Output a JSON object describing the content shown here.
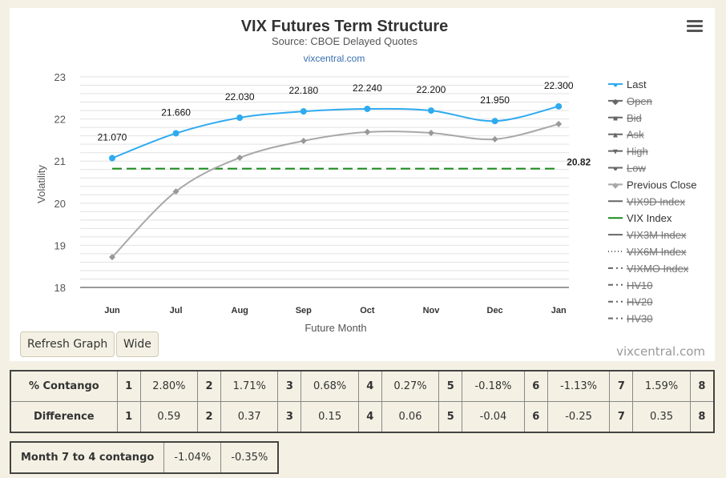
{
  "chart_data": {
    "type": "line",
    "title": "VIX Futures Term Structure",
    "subtitle": "Source: CBOE Delayed Quotes",
    "link": "vixcentral.com",
    "xlabel": "Future Month",
    "ylabel": "Volatility",
    "categories": [
      "Jun",
      "Jul",
      "Aug",
      "Sep",
      "Oct",
      "Nov",
      "Dec",
      "Jan"
    ],
    "ylim": [
      18,
      23
    ],
    "yticks": [
      "18",
      "19",
      "20",
      "21",
      "22",
      "23"
    ],
    "series": [
      {
        "name": "Last",
        "color": "#2eaaf0",
        "values": [
          21.07,
          21.66,
          22.03,
          22.18,
          22.24,
          22.2,
          21.95,
          22.3
        ],
        "labels": [
          "21.070",
          "21.660",
          "22.030",
          "22.180",
          "22.240",
          "22.200",
          "21.950",
          "22.300"
        ]
      },
      {
        "name": "Previous Close",
        "color": "#a8a8a8",
        "values": [
          18.72,
          20.28,
          21.08,
          21.48,
          21.69,
          21.67,
          21.52,
          21.88
        ]
      },
      {
        "name": "VIX Index",
        "color": "#1a8a1a",
        "value": 20.82,
        "label": "20.82"
      }
    ],
    "legend": [
      {
        "label": "Last",
        "hidden": false,
        "color": "#2eaaf0",
        "sym": "●"
      },
      {
        "label": "Open",
        "hidden": true,
        "color": "#666",
        "sym": "◆"
      },
      {
        "label": "Bid",
        "hidden": true,
        "color": "#666",
        "sym": "■"
      },
      {
        "label": "Ask",
        "hidden": true,
        "color": "#666",
        "sym": "▲"
      },
      {
        "label": "High",
        "hidden": true,
        "color": "#666",
        "sym": "▼"
      },
      {
        "label": "Low",
        "hidden": true,
        "color": "#666",
        "sym": "●"
      },
      {
        "label": "Previous Close",
        "hidden": false,
        "color": "#a8a8a8",
        "sym": "◆"
      },
      {
        "label": "VIX9D Index",
        "hidden": true,
        "color": "#666",
        "sym": ""
      },
      {
        "label": "VIX Index",
        "hidden": false,
        "color": "#1a8a1a",
        "sym": ""
      },
      {
        "label": "VIX3M Index",
        "hidden": true,
        "color": "#666",
        "sym": ""
      },
      {
        "label": "VIX6M Index",
        "hidden": true,
        "color": "#666",
        "sym": "",
        "dash": "1,3"
      },
      {
        "label": "VIXMO Index",
        "hidden": true,
        "color": "#666",
        "sym": "",
        "dash": "6,4,2,4"
      },
      {
        "label": "HV10",
        "hidden": true,
        "color": "#666",
        "sym": "",
        "dash": "6,4,2,4"
      },
      {
        "label": "HV20",
        "hidden": true,
        "color": "#666",
        "sym": "",
        "dash": "6,4,2,4"
      },
      {
        "label": "HV30",
        "hidden": true,
        "color": "#666",
        "sym": "",
        "dash": "6,4,2,4"
      }
    ],
    "legend_position": "right"
  },
  "buttons": {
    "refresh": "Refresh Graph",
    "wide": "Wide"
  },
  "credit": "vixcentral.com",
  "contango": {
    "label": "% Contango",
    "cells": [
      [
        "1",
        "2.80%"
      ],
      [
        "2",
        "1.71%"
      ],
      [
        "3",
        "0.68%"
      ],
      [
        "4",
        "0.27%"
      ],
      [
        "5",
        "-0.18%"
      ],
      [
        "6",
        "-1.13%"
      ],
      [
        "7",
        "1.59%"
      ]
    ],
    "last": "8"
  },
  "difference": {
    "label": "Difference",
    "cells": [
      [
        "1",
        "0.59"
      ],
      [
        "2",
        "0.37"
      ],
      [
        "3",
        "0.15"
      ],
      [
        "4",
        "0.06"
      ],
      [
        "5",
        "-0.04"
      ],
      [
        "6",
        "-0.25"
      ],
      [
        "7",
        "0.35"
      ]
    ],
    "last": "8"
  },
  "month74": {
    "label": "Month 7 to 4 contango",
    "v1": "-1.04%",
    "v2": "-0.35%"
  }
}
